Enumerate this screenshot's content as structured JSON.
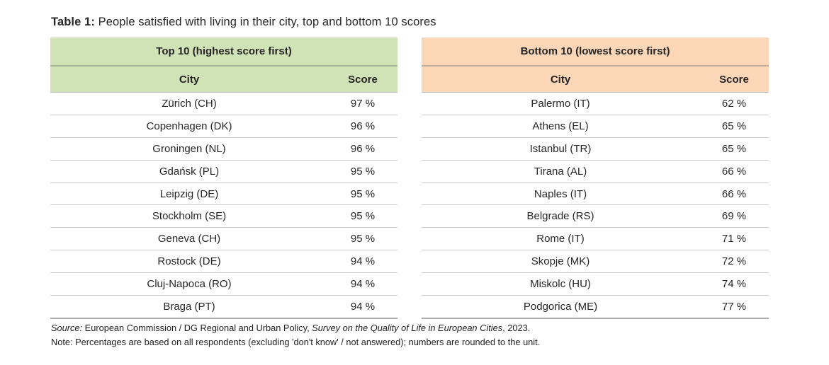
{
  "page": {
    "title_prefix": "Table 1:",
    "title_rest": " People satisfied with living in their city, top and bottom 10 scores"
  },
  "tables": [
    {
      "header": "Top 10 (highest score first)",
      "accent": "#cfe3b6",
      "columns": [
        "City",
        "Score"
      ],
      "rows": [
        {
          "city": "Zürich (CH)",
          "score": "97 %"
        },
        {
          "city": "Copenhagen (DK)",
          "score": "96 %"
        },
        {
          "city": "Groningen (NL)",
          "score": "96 %"
        },
        {
          "city": "Gdańsk (PL)",
          "score": "95 %"
        },
        {
          "city": "Leipzig (DE)",
          "score": "95 %"
        },
        {
          "city": "Stockholm (SE)",
          "score": "95 %"
        },
        {
          "city": "Geneva (CH)",
          "score": "95 %"
        },
        {
          "city": "Rostock (DE)",
          "score": "94 %"
        },
        {
          "city": "Cluj-Napoca (RO)",
          "score": "94 %"
        },
        {
          "city": "Braga (PT)",
          "score": "94 %"
        }
      ]
    },
    {
      "header": "Bottom 10 (lowest score first)",
      "accent": "#fbd7b7",
      "columns": [
        "City",
        "Score"
      ],
      "rows": [
        {
          "city": "Palermo (IT)",
          "score": "62 %"
        },
        {
          "city": "Athens (EL)",
          "score": "65 %"
        },
        {
          "city": "Istanbul (TR)",
          "score": "65 %"
        },
        {
          "city": "Tirana (AL)",
          "score": "66 %"
        },
        {
          "city": "Naples (IT)",
          "score": "66 %"
        },
        {
          "city": "Belgrade (RS)",
          "score": "69 %"
        },
        {
          "city": "Rome (IT)",
          "score": "71 %"
        },
        {
          "city": "Skopje (MK)",
          "score": "72 %"
        },
        {
          "city": "Miskolc (HU)",
          "score": "74 %"
        },
        {
          "city": "Podgorica (ME)",
          "score": "77 %"
        }
      ]
    }
  ],
  "footer": {
    "source_label": "Source:",
    "source_text": " European Commission / DG Regional and Urban Policy, ",
    "source_italic": "Survey on the Quality of Life in European Cities",
    "source_suffix": ", 2023.",
    "note": "Note: Percentages are based on all respondents (excluding 'don't know' / not answered); numbers are rounded to the unit."
  }
}
